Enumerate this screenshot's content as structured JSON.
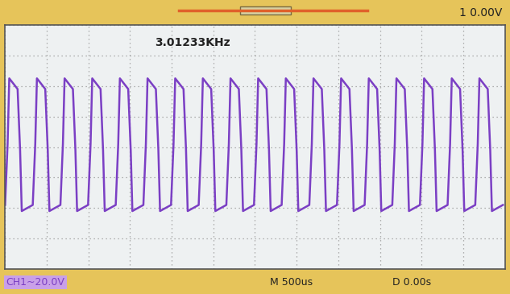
{
  "chart_data": {
    "type": "line",
    "annotations": [
      "3.01233KHz",
      "CH1~20.0V",
      "M 500us",
      "D 0.00s",
      "1 0.00V"
    ],
    "x": [
      -3000,
      -2970,
      -2950,
      -2850,
      -2820,
      -2800,
      -2668,
      -2638,
      -2618,
      -2518,
      -2488,
      -2468,
      -2336,
      -2306,
      -2286,
      -2186,
      -2156,
      -2136,
      -2004,
      -1974,
      -1954,
      -1854,
      -1824,
      -1804,
      -1672,
      -1642,
      -1622,
      -1522,
      -1492,
      -1472,
      -1340,
      -1310,
      -1290,
      -1190,
      -1160,
      -1140,
      -1008,
      -978,
      -958,
      -858,
      -828,
      -808,
      -676,
      -646,
      -626,
      -526,
      -496,
      -476,
      -344,
      -314,
      -294,
      -194,
      -164,
      -144,
      -12,
      18,
      38,
      138,
      168,
      188,
      320,
      350,
      370,
      470,
      500,
      520,
      652,
      682,
      702,
      802,
      832,
      852,
      984,
      1014,
      1034,
      1134,
      1164,
      1184,
      1316,
      1346,
      1366,
      1466,
      1496,
      1516,
      1648,
      1678,
      1698,
      1798,
      1828,
      1848,
      1980,
      2010,
      2030,
      2130,
      2160,
      2180,
      2312,
      2342,
      2362,
      2462,
      2492,
      2512,
      2644,
      2674,
      2694,
      2794,
      2824,
      2844,
      2976
    ],
    "series": [
      {
        "name": "CH1",
        "color": "#7b3fc4",
        "values": [
          -38,
          2,
          45,
          38,
          -2,
          -42,
          -38,
          2,
          45,
          38,
          -2,
          -42,
          -38,
          2,
          45,
          38,
          -2,
          -42,
          -38,
          2,
          45,
          38,
          -2,
          -42,
          -38,
          2,
          45,
          38,
          -2,
          -42,
          -38,
          2,
          45,
          38,
          -2,
          -42,
          -38,
          2,
          45,
          38,
          -2,
          -42,
          -38,
          2,
          45,
          38,
          -2,
          -42,
          -38,
          2,
          45,
          38,
          -2,
          -42,
          -38,
          2,
          45,
          38,
          -2,
          -42,
          -38,
          2,
          45,
          38,
          -2,
          -42,
          -38,
          2,
          45,
          38,
          -2,
          -42,
          -38,
          2,
          45,
          38,
          -2,
          -42,
          -38,
          2,
          45,
          38,
          -2,
          -42,
          -38,
          2,
          45,
          38,
          -2,
          -42,
          -38,
          2,
          45,
          38,
          -2,
          -42,
          -38,
          2,
          45,
          38,
          -2,
          -42,
          -38,
          2,
          45,
          38,
          -2,
          -42,
          -38
        ]
      }
    ],
    "xlim": [
      -3000,
      3000
    ],
    "xticks": [
      -3000,
      -2500,
      -2000,
      -1500,
      -1000,
      -500,
      0,
      500,
      1000,
      1500,
      2000,
      2500,
      3000
    ],
    "ylim": [
      -80,
      80
    ],
    "yticks": [
      -80,
      -60,
      -40,
      -20,
      0,
      20,
      40,
      60,
      80
    ],
    "grid": true,
    "tick_labels": false
  }
}
